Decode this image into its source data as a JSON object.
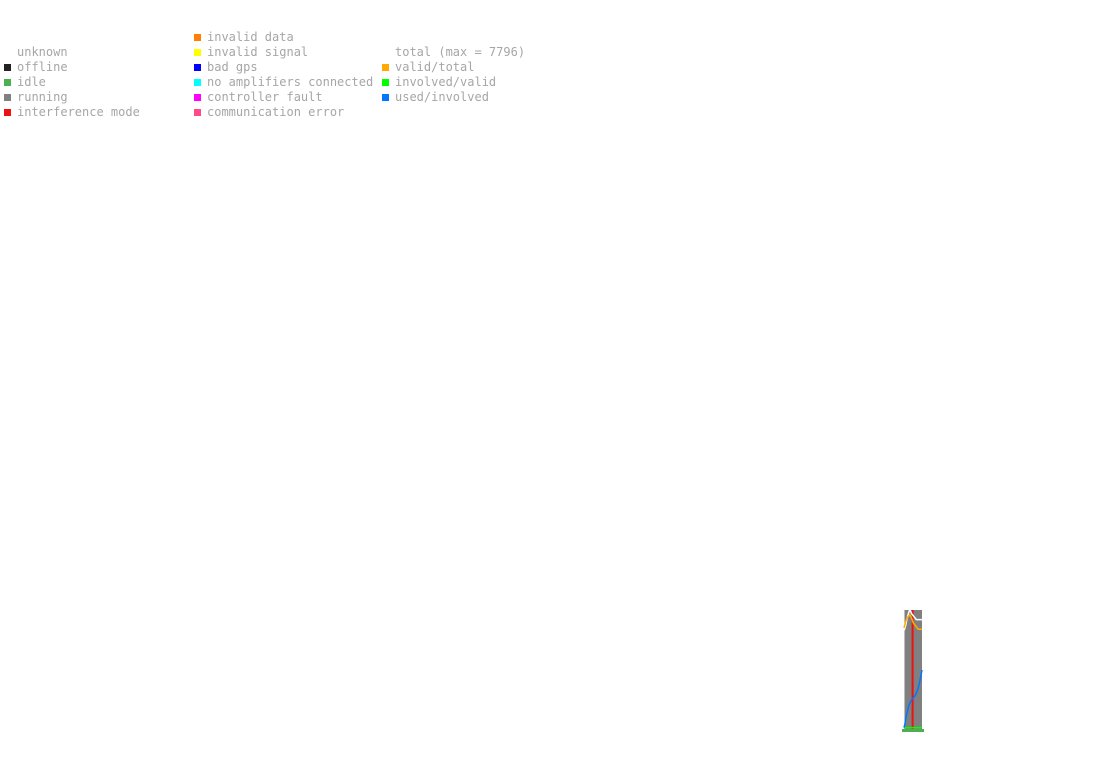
{
  "legend": {
    "status": [
      {
        "label": "unknown",
        "color": "#ffffff"
      },
      {
        "label": "offline",
        "color": "#222222"
      },
      {
        "label": "idle",
        "color": "#4caf50"
      },
      {
        "label": "running",
        "color": "#808080"
      },
      {
        "label": "interference mode",
        "color": "#ee1111"
      }
    ],
    "errors": [
      {
        "label": "invalid data",
        "color": "#ff7f00"
      },
      {
        "label": "invalid signal",
        "color": "#ffff00"
      },
      {
        "label": "bad gps",
        "color": "#0000ff"
      },
      {
        "label": "no amplifiers connected",
        "color": "#00ffff"
      },
      {
        "label": "controller fault",
        "color": "#ff00ff"
      },
      {
        "label": "communication error",
        "color": "#ff4b8b"
      }
    ],
    "ratios": [
      {
        "label": "total (max = 7796)",
        "color": "#ffffff"
      },
      {
        "label": "valid/total",
        "color": "#ffaa00"
      },
      {
        "label": "involved/valid",
        "color": "#00ff00"
      },
      {
        "label": "used/involved",
        "color": "#0077ff"
      }
    ]
  },
  "chart_data": {
    "type": "area",
    "total_max": 7796,
    "ylim": [
      0,
      1
    ],
    "x": [
      0,
      1,
      2,
      3,
      4,
      5,
      6,
      7,
      8,
      9,
      10,
      11,
      12,
      13,
      14,
      15,
      16,
      17,
      18,
      19
    ],
    "series": [
      {
        "name": "total (max = 7796)",
        "color": "#ffffff",
        "values": [
          0.83,
          0.85,
          0.88,
          0.92,
          0.95,
          0.98,
          1.0,
          0.99,
          0.97,
          0.96,
          0.95,
          0.94,
          0.93,
          0.92,
          0.92,
          0.92,
          0.92,
          0.92,
          0.92,
          0.92
        ]
      },
      {
        "name": "valid/total",
        "color": "#ffaa00",
        "values": [
          0.85,
          0.88,
          0.91,
          0.93,
          0.94,
          0.95,
          0.96,
          0.95,
          0.93,
          0.91,
          0.89,
          0.88,
          0.87,
          0.86,
          0.85,
          0.84,
          0.84,
          0.84,
          0.84,
          0.84
        ]
      },
      {
        "name": "involved/valid",
        "color": "#00ff00",
        "values": [
          0.02,
          0.02,
          0.02,
          0.02,
          0.02,
          0.02,
          0.02,
          0.02,
          0.02,
          0.02,
          0.02,
          0.02,
          0.02,
          0.02,
          0.02,
          0.02,
          0.02,
          0.02,
          0.02,
          0.02
        ]
      },
      {
        "name": "used/involved",
        "color": "#0077ff",
        "values": [
          0.02,
          0.05,
          0.1,
          0.14,
          0.17,
          0.2,
          0.22,
          0.24,
          0.25,
          0.26,
          0.27,
          0.28,
          0.29,
          0.31,
          0.33,
          0.35,
          0.38,
          0.42,
          0.46,
          0.5
        ]
      }
    ],
    "status_bands": [
      {
        "name": "running",
        "color": "#808080",
        "from": 0.5,
        "to": 19.5
      },
      {
        "name": "interference mode",
        "color": "#ee1111",
        "from": 8,
        "to": 10
      }
    ],
    "idle_base": {
      "name": "idle",
      "color": "#4caf50"
    }
  }
}
